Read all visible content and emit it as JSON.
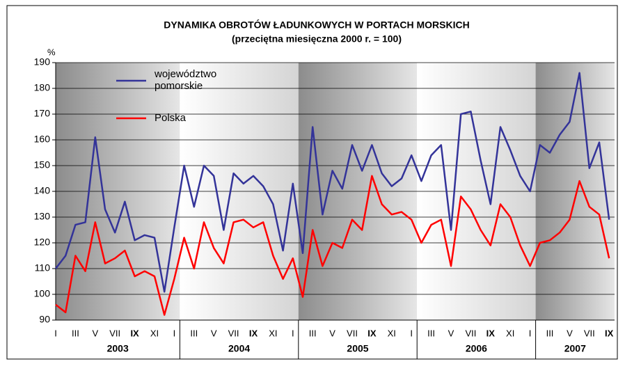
{
  "chart_data": {
    "type": "line",
    "title": "DYNAMIKA OBROTÓW ŁADUNKOWYCH W PORTACH MORSKICH",
    "subtitle": "(przeciętna miesięczna 2000 r. = 100)",
    "y_label": "%",
    "categories": [
      "I",
      null,
      "III",
      null,
      "V",
      null,
      "VII",
      null,
      "IX",
      null,
      "XI",
      null,
      "I",
      null,
      "III",
      null,
      "V",
      null,
      "VII",
      null,
      "IX",
      null,
      "XI",
      null,
      "I",
      null,
      "III",
      null,
      "V",
      null,
      "VII",
      null,
      "IX",
      null,
      "XI",
      null,
      "I",
      null,
      "III",
      null,
      "V",
      null,
      "VII",
      null,
      "IX",
      null,
      "XI",
      null,
      "I",
      null,
      "III",
      null,
      "V",
      null,
      "VII",
      null,
      "IX"
    ],
    "years": [
      "2003",
      "2004",
      "2005",
      "2006",
      "2007"
    ],
    "series": [
      {
        "name": "województwo pomorskie",
        "color": "#333399",
        "values": [
          110,
          115,
          127,
          128,
          161,
          133,
          124,
          136,
          121,
          123,
          122,
          101,
          126,
          150,
          134,
          150,
          146,
          125,
          147,
          143,
          146,
          142,
          135,
          117,
          143,
          116,
          165,
          131,
          148,
          141,
          158,
          148,
          158,
          147,
          142,
          145,
          154,
          144,
          154,
          158,
          125,
          170,
          171,
          152,
          135,
          165,
          156,
          146,
          140,
          158,
          155,
          162,
          167,
          186,
          149,
          159,
          129
        ]
      },
      {
        "name": "Polska",
        "color": "#ff0000",
        "values": [
          96,
          93,
          115,
          109,
          128,
          112,
          114,
          117,
          107,
          109,
          107,
          92,
          106,
          122,
          110,
          128,
          118,
          112,
          128,
          129,
          126,
          128,
          115,
          106,
          114,
          99,
          125,
          111,
          120,
          118,
          129,
          125,
          146,
          135,
          131,
          132,
          129,
          120,
          127,
          129,
          111,
          138,
          133,
          125,
          119,
          135,
          130,
          119,
          111,
          120,
          121,
          124,
          129,
          144,
          134,
          131,
          114
        ]
      }
    ],
    "ylim": [
      90,
      190
    ],
    "yticks": [
      90,
      100,
      110,
      120,
      130,
      140,
      150,
      160,
      170,
      180,
      190
    ],
    "grid": true
  }
}
